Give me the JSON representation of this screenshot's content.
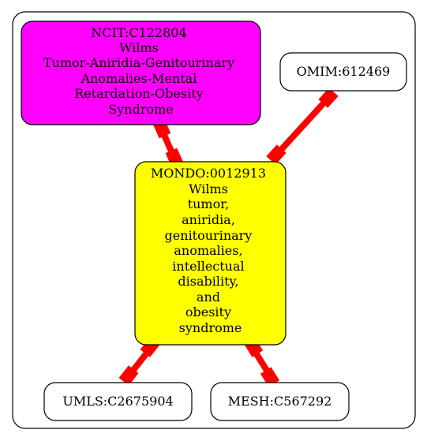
{
  "nodes": {
    "ncit": {
      "lines": [
        "NCIT:C122804",
        "Wilms",
        "Tumor-Aniridia-Genitourinary",
        "Anomalies-Mental",
        "Retardation-Obesity",
        "Syndrome"
      ],
      "fill": "#ff00ff"
    },
    "omim": {
      "lines": [
        "OMIM:612469"
      ],
      "fill": "#ffffff"
    },
    "mondo": {
      "lines": [
        "MONDO:0012913",
        "Wilms",
        "tumor,",
        "aniridia,",
        "genitourinary",
        "anomalies,",
        "intellectual",
        "disability,",
        "and",
        "obesity",
        "syndrome"
      ],
      "fill": "#ffff00"
    },
    "umls": {
      "lines": [
        "UMLS:C2675904"
      ],
      "fill": "#ffffff"
    },
    "mesh": {
      "lines": [
        "MESH:C567292"
      ],
      "fill": "#ffffff"
    }
  },
  "edges": [
    {
      "from": "ncit",
      "to": "mondo"
    },
    {
      "from": "omim",
      "to": "mondo"
    },
    {
      "from": "mondo",
      "to": "umls"
    },
    {
      "from": "mondo",
      "to": "mesh"
    }
  ],
  "colors": {
    "edge": "#ff0000",
    "border": "#000000",
    "background": "#ffffff"
  }
}
